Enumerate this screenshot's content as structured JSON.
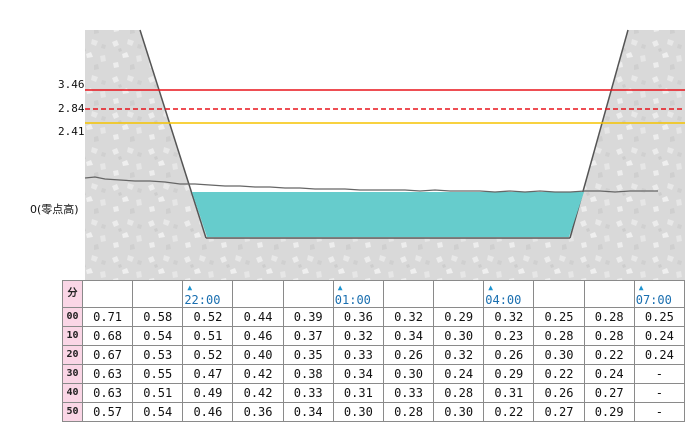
{
  "levels": {
    "red": {
      "value": 3.46,
      "label": "3.46",
      "color": "#e8141c"
    },
    "red_dashed": {
      "value": 2.84,
      "label": "2.84",
      "color": "#e8141c"
    },
    "yellow": {
      "value": 2.41,
      "label": "2.41",
      "color": "#f5c400"
    },
    "zero": {
      "label": "0(零点高)"
    }
  },
  "colors": {
    "water": "#66cccc",
    "bank": "#d9d9d9",
    "outline": "#555555"
  },
  "table": {
    "minute_header": "分",
    "time_markers": [
      {
        "column": 2,
        "label": "22:00"
      },
      {
        "column": 5,
        "label": "01:00"
      },
      {
        "column": 8,
        "label": "04:00"
      },
      {
        "column": 11,
        "label": "07:00"
      }
    ],
    "rows": [
      {
        "minute": "00",
        "values": [
          "0.71",
          "0.58",
          "0.52",
          "0.44",
          "0.39",
          "0.36",
          "0.32",
          "0.29",
          "0.32",
          "0.25",
          "0.28",
          "0.25"
        ]
      },
      {
        "minute": "10",
        "values": [
          "0.68",
          "0.54",
          "0.51",
          "0.46",
          "0.37",
          "0.32",
          "0.34",
          "0.30",
          "0.23",
          "0.28",
          "0.28",
          "0.24"
        ]
      },
      {
        "minute": "20",
        "values": [
          "0.67",
          "0.53",
          "0.52",
          "0.40",
          "0.35",
          "0.33",
          "0.26",
          "0.32",
          "0.26",
          "0.30",
          "0.22",
          "0.24"
        ]
      },
      {
        "minute": "30",
        "values": [
          "0.63",
          "0.55",
          "0.47",
          "0.42",
          "0.38",
          "0.34",
          "0.30",
          "0.24",
          "0.29",
          "0.22",
          "0.24",
          "-"
        ]
      },
      {
        "minute": "40",
        "values": [
          "0.63",
          "0.51",
          "0.49",
          "0.42",
          "0.33",
          "0.31",
          "0.33",
          "0.28",
          "0.31",
          "0.26",
          "0.27",
          "-"
        ]
      },
      {
        "minute": "50",
        "values": [
          "0.57",
          "0.54",
          "0.46",
          "0.36",
          "0.34",
          "0.30",
          "0.28",
          "0.30",
          "0.22",
          "0.27",
          "0.29",
          "-"
        ]
      }
    ]
  }
}
